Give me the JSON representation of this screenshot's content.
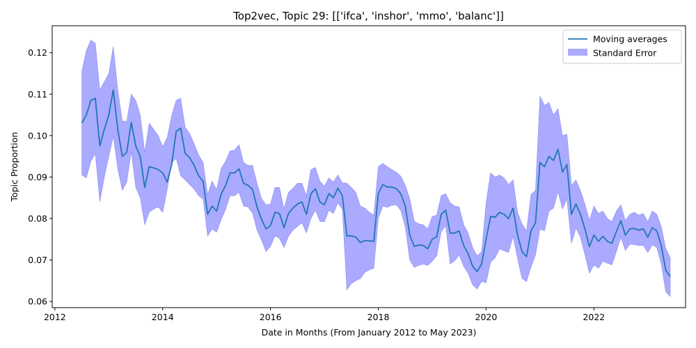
{
  "chart_data": {
    "type": "line",
    "title": "Top2vec, Topic 29: [['ifca', 'inshor', 'mmo', 'balanc']]",
    "xlabel": "Date in Months (From January 2012 to May 2023)",
    "ylabel": "Topic Proportion",
    "xlim": [
      2011.95,
      2023.7
    ],
    "ylim": [
      0.0585,
      0.1265
    ],
    "xticks": [
      2012,
      2014,
      2016,
      2018,
      2020,
      2022
    ],
    "xtick_labels": [
      "2012",
      "2014",
      "2016",
      "2018",
      "2020",
      "2022"
    ],
    "yticks": [
      0.06,
      0.07,
      0.08,
      0.09,
      0.1,
      0.11,
      0.12
    ],
    "ytick_labels": [
      "0.06",
      "0.07",
      "0.08",
      "0.09",
      "0.10",
      "0.11",
      "0.12"
    ],
    "grid": false,
    "legend_position": "top-right",
    "legend": [
      "Moving averages",
      "Standard Error"
    ],
    "colors": {
      "line": "#1f77b4",
      "band": "#aaaaff",
      "band_edge": "#8c8cf5"
    },
    "x_start": 2012.5,
    "x_step": 0.08333,
    "series": [
      {
        "name": "Moving averages",
        "values": [
          0.103,
          0.105,
          0.1085,
          0.109,
          0.0975,
          0.1015,
          0.105,
          0.111,
          0.1015,
          0.095,
          0.096,
          0.1032,
          0.0975,
          0.095,
          0.0875,
          0.0925,
          0.0922,
          0.0918,
          0.091,
          0.0888,
          0.093,
          0.101,
          0.1018,
          0.0957,
          0.0947,
          0.0928,
          0.0903,
          0.089,
          0.081,
          0.083,
          0.0818,
          0.0858,
          0.088,
          0.091,
          0.091,
          0.092,
          0.0885,
          0.088,
          0.087,
          0.0828,
          0.0798,
          0.0775,
          0.0783,
          0.0815,
          0.0812,
          0.0778,
          0.0812,
          0.0825,
          0.0835,
          0.084,
          0.081,
          0.086,
          0.0872,
          0.084,
          0.0833,
          0.086,
          0.085,
          0.0873,
          0.0855,
          0.0758,
          0.0758,
          0.0755,
          0.0742,
          0.0747,
          0.0746,
          0.0745,
          0.086,
          0.0882,
          0.0876,
          0.0876,
          0.0872,
          0.086,
          0.083,
          0.076,
          0.0733,
          0.0736,
          0.0735,
          0.0727,
          0.075,
          0.0756,
          0.081,
          0.082,
          0.0765,
          0.0765,
          0.077,
          0.0735,
          0.0715,
          0.0685,
          0.0672,
          0.069,
          0.075,
          0.0805,
          0.0803,
          0.0815,
          0.081,
          0.08,
          0.0825,
          0.076,
          0.072,
          0.0708,
          0.077,
          0.079,
          0.0935,
          0.0925,
          0.095,
          0.094,
          0.0967,
          0.0912,
          0.093,
          0.081,
          0.0835,
          0.081,
          0.0775,
          0.0732,
          0.076,
          0.0745,
          0.0757,
          0.0745,
          0.074,
          0.0768,
          0.0795,
          0.076,
          0.0775,
          0.0776,
          0.0772,
          0.0775,
          0.0755,
          0.0778,
          0.077,
          0.0735,
          0.0675,
          0.066
        ]
      }
    ],
    "standard_error": {
      "name": "Standard Error",
      "upper": [
        0.1155,
        0.1205,
        0.123,
        0.1223,
        0.111,
        0.113,
        0.115,
        0.1215,
        0.111,
        0.1035,
        0.1035,
        0.11,
        0.1085,
        0.105,
        0.096,
        0.103,
        0.1015,
        0.1,
        0.0973,
        0.0995,
        0.1048,
        0.1085,
        0.109,
        0.102,
        0.1005,
        0.098,
        0.0953,
        0.0935,
        0.0858,
        0.089,
        0.087,
        0.092,
        0.0938,
        0.0963,
        0.0965,
        0.0978,
        0.0935,
        0.0928,
        0.0928,
        0.0885,
        0.0848,
        0.0833,
        0.0835,
        0.0875,
        0.0875,
        0.0823,
        0.0863,
        0.0873,
        0.0885,
        0.0885,
        0.0855,
        0.0918,
        0.0923,
        0.089,
        0.0878,
        0.0898,
        0.0888,
        0.0905,
        0.0886,
        0.0885,
        0.0875,
        0.0863,
        0.083,
        0.0825,
        0.0815,
        0.0808,
        0.0925,
        0.0933,
        0.0925,
        0.0918,
        0.0912,
        0.0902,
        0.088,
        0.0848,
        0.0793,
        0.0787,
        0.0785,
        0.0775,
        0.0805,
        0.0808,
        0.0855,
        0.086,
        0.0838,
        0.083,
        0.0828,
        0.0785,
        0.0765,
        0.073,
        0.071,
        0.072,
        0.0838,
        0.091,
        0.09,
        0.0905,
        0.0898,
        0.0882,
        0.0893,
        0.0815,
        0.0787,
        0.077,
        0.0858,
        0.0868,
        0.1095,
        0.1073,
        0.108,
        0.105,
        0.1065,
        0.1,
        0.1003,
        0.088,
        0.0893,
        0.0867,
        0.0835,
        0.0795,
        0.083,
        0.0812,
        0.0818,
        0.08,
        0.0793,
        0.0818,
        0.0833,
        0.0795,
        0.081,
        0.0815,
        0.0808,
        0.0812,
        0.0792,
        0.0818,
        0.081,
        0.078,
        0.0728,
        0.0705
      ],
      "lower": [
        0.0905,
        0.0898,
        0.0938,
        0.0957,
        0.084,
        0.09,
        0.095,
        0.0998,
        0.092,
        0.0868,
        0.0888,
        0.0962,
        0.0875,
        0.085,
        0.0785,
        0.0815,
        0.0823,
        0.0828,
        0.0815,
        0.087,
        0.0935,
        0.0945,
        0.0903,
        0.0893,
        0.0882,
        0.0871,
        0.0855,
        0.0847,
        0.0758,
        0.0775,
        0.0767,
        0.0797,
        0.0822,
        0.0855,
        0.0855,
        0.0863,
        0.083,
        0.0828,
        0.0813,
        0.0772,
        0.0748,
        0.072,
        0.0733,
        0.0758,
        0.0752,
        0.073,
        0.0757,
        0.0772,
        0.0781,
        0.079,
        0.0765,
        0.08,
        0.082,
        0.0793,
        0.0792,
        0.082,
        0.0812,
        0.0838,
        0.0822,
        0.0628,
        0.0643,
        0.065,
        0.0655,
        0.067,
        0.0676,
        0.068,
        0.08,
        0.083,
        0.0827,
        0.0832,
        0.0833,
        0.082,
        0.078,
        0.07,
        0.0682,
        0.0687,
        0.069,
        0.0687,
        0.0697,
        0.071,
        0.0768,
        0.0783,
        0.069,
        0.0698,
        0.0712,
        0.0685,
        0.0668,
        0.064,
        0.063,
        0.0648,
        0.0645,
        0.0695,
        0.0705,
        0.0727,
        0.0722,
        0.0718,
        0.0757,
        0.0703,
        0.0655,
        0.0648,
        0.0683,
        0.0712,
        0.0775,
        0.077,
        0.0818,
        0.0825,
        0.0865,
        0.0823,
        0.0847,
        0.074,
        0.0777,
        0.0755,
        0.0713,
        0.0668,
        0.0688,
        0.068,
        0.0697,
        0.0692,
        0.0688,
        0.072,
        0.0755,
        0.0723,
        0.0738,
        0.0737,
        0.0735,
        0.0735,
        0.0718,
        0.0737,
        0.073,
        0.069,
        0.0623,
        0.0612
      ]
    }
  }
}
